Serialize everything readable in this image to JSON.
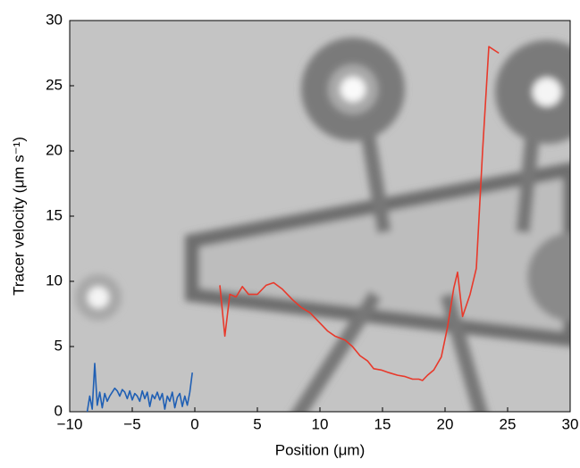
{
  "chart_data": {
    "type": "line",
    "xlabel": "Position (μm)",
    "ylabel": "Tracer velocity (μm s⁻¹)",
    "xlim": [
      -10,
      30
    ],
    "ylim": [
      0,
      30
    ],
    "xticks": [
      {
        "value": -10,
        "label": "−10"
      },
      {
        "value": -5,
        "label": "−5"
      },
      0,
      5,
      10,
      15,
      20,
      25,
      30
    ],
    "yticks": [
      0,
      5,
      10,
      15,
      20,
      25,
      30
    ],
    "series": [
      {
        "color": "#1f5fb4",
        "x": [
          -8.6,
          -8.4,
          -8.2,
          -8.0,
          -7.8,
          -7.6,
          -7.4,
          -7.2,
          -7.0,
          -6.8,
          -6.6,
          -6.4,
          -6.2,
          -6.0,
          -5.8,
          -5.6,
          -5.4,
          -5.2,
          -5.0,
          -4.8,
          -4.6,
          -4.4,
          -4.2,
          -4.0,
          -3.8,
          -3.6,
          -3.4,
          -3.2,
          -3.0,
          -2.8,
          -2.6,
          -2.4,
          -2.2,
          -2.0,
          -1.8,
          -1.6,
          -1.4,
          -1.2,
          -1.0,
          -0.8,
          -0.6,
          -0.4,
          -0.2
        ],
        "values": [
          0,
          1.2,
          0.2,
          3.7,
          0.5,
          1.5,
          0.3,
          1.4,
          0.8,
          1.2,
          1.5,
          1.8,
          1.6,
          1.2,
          1.7,
          1.5,
          1.0,
          1.6,
          0.9,
          1.4,
          1.2,
          0.8,
          1.6,
          1.0,
          1.5,
          0.4,
          1.3,
          1.0,
          1.5,
          0.9,
          1.4,
          0.2,
          1.2,
          0.8,
          1.5,
          0.3,
          1.1,
          1.4,
          0.4,
          1.2,
          0.5,
          1.5,
          3.0
        ]
      },
      {
        "color": "#e8392b",
        "x": [
          2,
          2.4,
          2.8,
          3.3,
          3.8,
          4.3,
          5,
          5.7,
          6.3,
          7,
          7.8,
          8.5,
          9.2,
          10,
          10.6,
          11.2,
          12,
          12.6,
          13.2,
          13.8,
          14.3,
          14.9,
          15.5,
          16.2,
          16.8,
          17.4,
          17.9,
          18.2,
          18.6,
          19.1,
          19.7,
          20.2,
          20.7,
          21,
          21.4,
          22,
          22.5,
          23,
          23.5,
          24.3
        ],
        "values": [
          9.7,
          5.8,
          9,
          8.8,
          9.6,
          9,
          9,
          9.7,
          9.9,
          9.4,
          8.6,
          8,
          7.6,
          6.8,
          6.2,
          5.8,
          5.5,
          5,
          4.3,
          3.9,
          3.3,
          3.2,
          3,
          2.8,
          2.7,
          2.5,
          2.5,
          2.4,
          2.8,
          3.2,
          4.2,
          6.5,
          9.5,
          10.7,
          7.3,
          9,
          11,
          20,
          28,
          27.5
        ]
      }
    ]
  }
}
